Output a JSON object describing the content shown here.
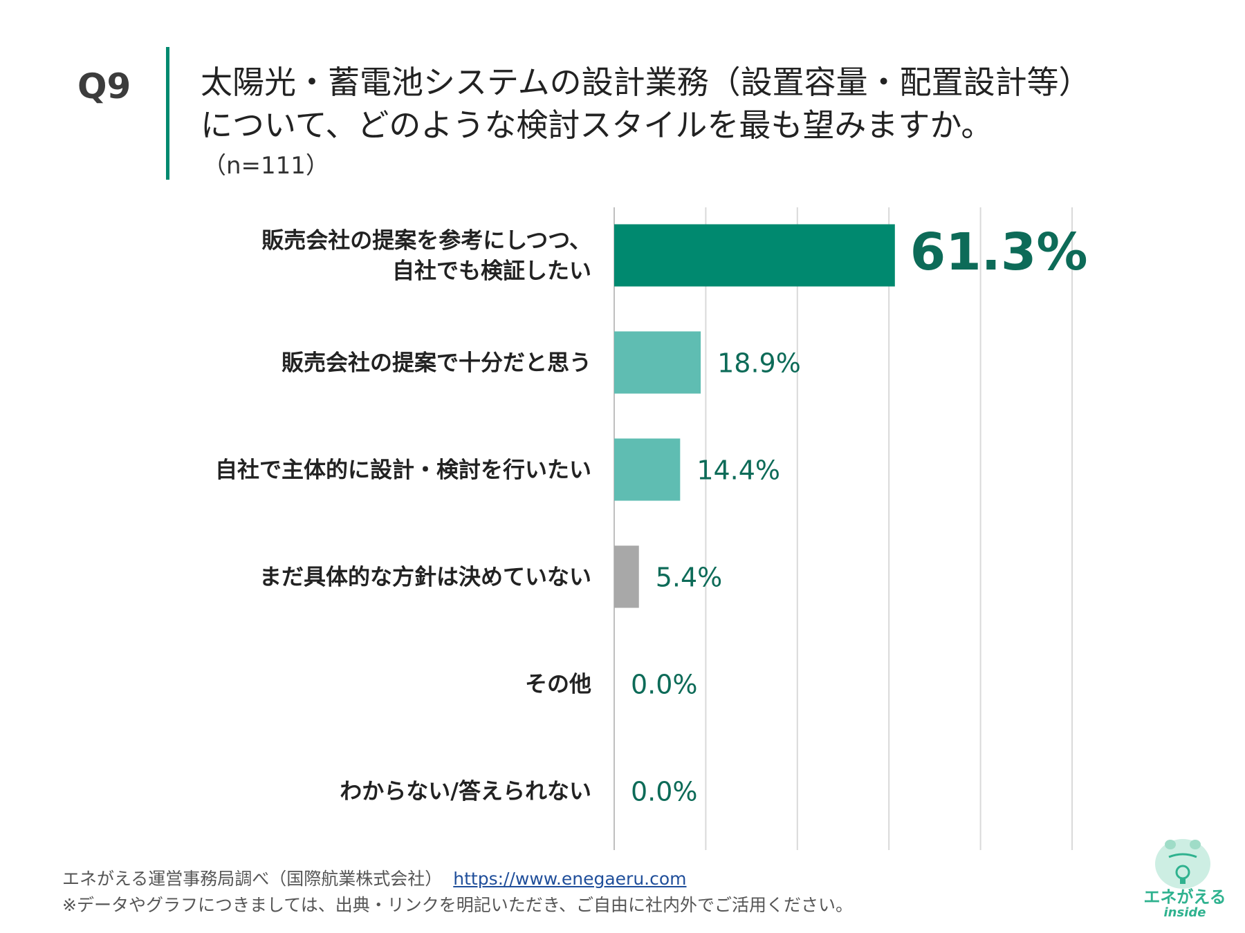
{
  "header": {
    "question_label": "Q9",
    "title_line1": "太陽光・蓄電池システムの設計業務（設置容量・配置設計等）",
    "title_line2": "について、どのような検討スタイルを最も望みますか。",
    "sample": "（n=111）"
  },
  "chart_data": {
    "type": "bar",
    "orientation": "horizontal",
    "categories": [
      [
        "販売会社の提案を参考にしつつ、",
        "自社でも検証したい"
      ],
      [
        "販売会社の提案で十分だと思う"
      ],
      [
        "自社で主体的に設計・検討を行いたい"
      ],
      [
        "まだ具体的な方針は決めていない"
      ],
      [
        "その他"
      ],
      [
        "わからない/答えられない"
      ]
    ],
    "values": [
      61.3,
      18.9,
      14.4,
      5.4,
      0.0,
      0.0
    ],
    "value_labels": [
      "61.3%",
      "18.9%",
      "14.4%",
      "5.4%",
      "0.0%",
      "0.0%"
    ],
    "bar_colors": [
      "#00896f",
      "#5fbdb2",
      "#5fbdb2",
      "#a8a8a8",
      "#5fbdb2",
      "#5fbdb2"
    ],
    "label_color": "#0d6b58",
    "grid_color": "#d9d9d9",
    "xlim": [
      0,
      100
    ],
    "grid": true
  },
  "footer": {
    "source": "エネがえる運営事務局調べ（国際航業株式会社）",
    "url": "https://www.enegaeru.com",
    "note": "※データやグラフにつきましては、出典・リンクを明記いただき、ご自由に社内外でご活用ください。"
  },
  "logo": {
    "name": "エネがえる",
    "sub": "inside"
  }
}
